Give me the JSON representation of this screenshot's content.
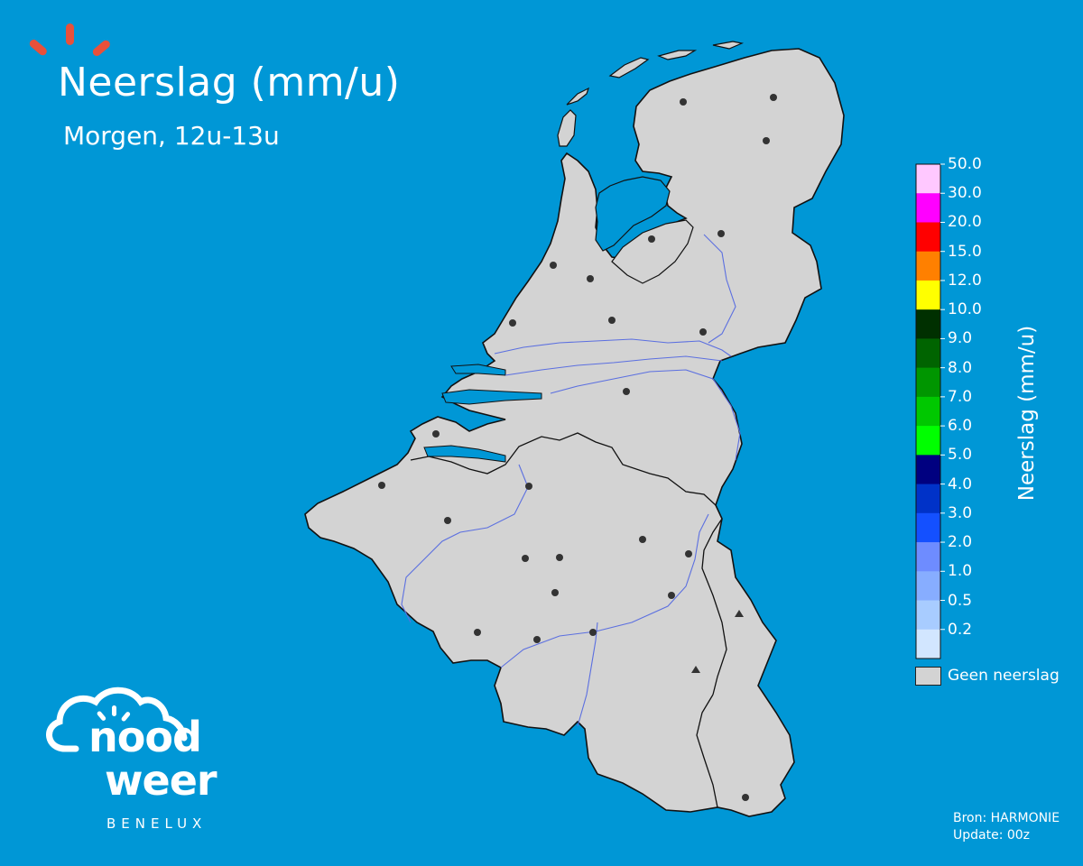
{
  "header": {
    "title": "Neerslag (mm/u)",
    "subtitle": "Morgen, 12u-13u"
  },
  "legend": {
    "title": "Neerslag (mm/u)",
    "labels": [
      "50.0",
      "30.0",
      "20.0",
      "15.0",
      "12.0",
      "10.0",
      "9.0",
      "8.0",
      "7.0",
      "6.0",
      "5.0",
      "4.0",
      "3.0",
      "2.0",
      "1.0",
      "0.5",
      "0.2"
    ],
    "colors": [
      "#ffc8ff",
      "#ff00ff",
      "#ff0000",
      "#ff8000",
      "#ffff00",
      "#003000",
      "#006400",
      "#009600",
      "#00c800",
      "#00ff00",
      "#000080",
      "#0032c8",
      "#1450ff",
      "#6e8cff",
      "#87adff",
      "#a8ccff",
      "#d2e6ff"
    ],
    "no_precip_label": "Geen neerslag",
    "no_precip_color": "#d3d3d3"
  },
  "source": {
    "line1": "Bron: HARMONIE",
    "line2": "Update: 00z"
  },
  "logo": {
    "word1": "nood",
    "word2": "weer",
    "sub": "BENELUX",
    "icon": "cloud-sun-icon"
  },
  "colors": {
    "sea": "#0097d6",
    "land": "#d3d3d3",
    "river": "#5b6fe0",
    "accent": "#e8503a",
    "station": "#333333"
  }
}
